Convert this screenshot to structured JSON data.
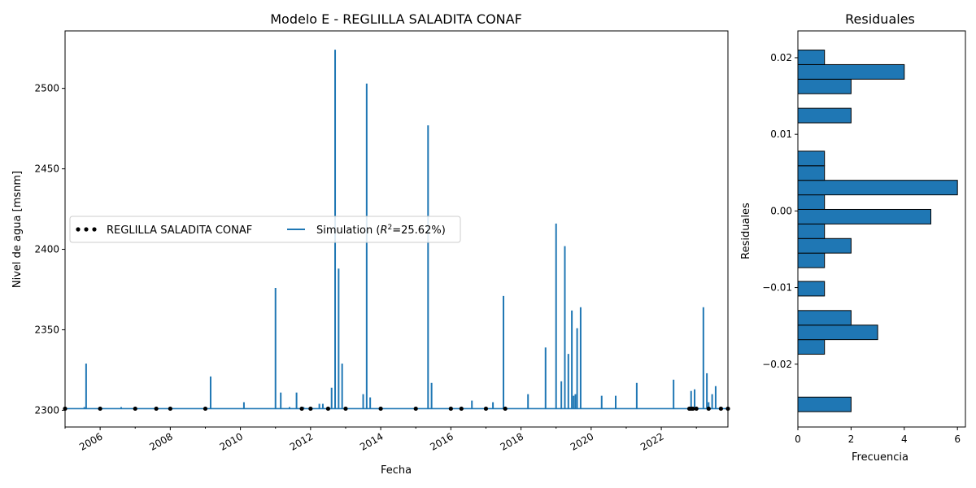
{
  "chart_data": [
    {
      "type": "line",
      "title": "Modelo E - REGLILLA SALADITA CONAF",
      "xlabel": "Fecha",
      "ylabel": "Nivel de agua [msnm]",
      "xlim": [
        2005.0,
        2023.9
      ],
      "ylim": [
        2289.6,
        2535.7
      ],
      "xticks": [
        "2006",
        "2008",
        "2010",
        "2012",
        "2014",
        "2016",
        "2018",
        "2020",
        "2022"
      ],
      "yticks": [
        2300,
        2350,
        2400,
        2450,
        2500
      ],
      "legend": {
        "placement": "center-left",
        "entries": [
          "REGLILLA SALADITA CONAF",
          "Simulation ($R^2$=25.62%)"
        ]
      },
      "series": [
        {
          "name": "REGLILLA SALADITA CONAF",
          "kind": "scatter",
          "color": "#000000",
          "x": [
            2005.0,
            2006.0,
            2007.0,
            2007.6,
            2008.0,
            2009.0,
            2011.75,
            2012.0,
            2012.5,
            2013.0,
            2014.0,
            2015.0,
            2016.0,
            2016.3,
            2017.0,
            2017.55,
            2022.8,
            2022.85,
            2022.9,
            2023.0,
            2023.35,
            2023.7,
            2023.9
          ],
          "y": [
            2301,
            2301,
            2301,
            2301,
            2301,
            2301,
            2301,
            2301,
            2301,
            2301,
            2301,
            2301,
            2301,
            2301,
            2301,
            2301,
            2301,
            2301,
            2301,
            2301,
            2301,
            2301,
            2301
          ]
        },
        {
          "name": "Simulation ($R^2$=25.62%)",
          "kind": "spikes",
          "baseline": 2301,
          "color": "#1f77b4",
          "x": [
            2005.55,
            2005.6,
            2006.6,
            2009.15,
            2010.1,
            2011.0,
            2011.15,
            2011.4,
            2011.6,
            2011.8,
            2012.25,
            2012.35,
            2012.6,
            2012.7,
            2012.8,
            2012.9,
            2013.5,
            2013.6,
            2013.7,
            2015.35,
            2015.45,
            2016.6,
            2017.2,
            2017.5,
            2018.2,
            2018.7,
            2019.0,
            2019.15,
            2019.25,
            2019.35,
            2019.45,
            2019.5,
            2019.55,
            2019.6,
            2019.7,
            2020.3,
            2020.7,
            2021.3,
            2022.35,
            2022.85,
            2022.95,
            2023.2,
            2023.3,
            2023.35,
            2023.45,
            2023.55
          ],
          "y": [
            2302,
            2329,
            2302,
            2321,
            2305,
            2376,
            2311,
            2302,
            2311,
            2302,
            2304,
            2304,
            2314,
            2524,
            2388,
            2329,
            2310,
            2503,
            2308,
            2477,
            2317,
            2306,
            2305,
            2371,
            2310,
            2339,
            2416,
            2318,
            2402,
            2335,
            2362,
            2309,
            2310,
            2351,
            2364,
            2309,
            2309,
            2317,
            2319,
            2312,
            2313,
            2364,
            2323,
            2305,
            2310,
            2315
          ]
        }
      ]
    },
    {
      "type": "bar",
      "orientation": "horizontal",
      "title": "Residuales",
      "xlabel": "Frecuencia",
      "ylabel": "Residuales",
      "xlim": [
        0,
        6.3
      ],
      "ylim": [
        -0.0282,
        0.0235
      ],
      "xticks": [
        0,
        2,
        4,
        6
      ],
      "yticks": [
        "−0.02",
        "−0.01",
        "0.00",
        "0.01",
        "0.02"
      ],
      "ytick_values": [
        -0.02,
        -0.01,
        0.0,
        0.01,
        0.02
      ],
      "bar_color": "#1f77b4",
      "edge_color": "#000000",
      "bins": [
        {
          "from": -0.0262,
          "to": -0.0243,
          "count": 2
        },
        {
          "from": -0.0187,
          "to": -0.0168,
          "count": 1
        },
        {
          "from": -0.0168,
          "to": -0.0149,
          "count": 3
        },
        {
          "from": -0.0149,
          "to": -0.013,
          "count": 2
        },
        {
          "from": -0.0111,
          "to": -0.0092,
          "count": 1
        },
        {
          "from": -0.0074,
          "to": -0.0055,
          "count": 1
        },
        {
          "from": -0.0055,
          "to": -0.0036,
          "count": 2
        },
        {
          "from": -0.0036,
          "to": -0.0017,
          "count": 1
        },
        {
          "from": -0.0017,
          "to": 0.0002,
          "count": 5
        },
        {
          "from": 0.0002,
          "to": 0.0021,
          "count": 1
        },
        {
          "from": 0.0021,
          "to": 0.004,
          "count": 6
        },
        {
          "from": 0.004,
          "to": 0.0059,
          "count": 1
        },
        {
          "from": 0.0059,
          "to": 0.0078,
          "count": 1
        },
        {
          "from": 0.0115,
          "to": 0.0134,
          "count": 2
        },
        {
          "from": 0.0153,
          "to": 0.0172,
          "count": 2
        },
        {
          "from": 0.0172,
          "to": 0.0191,
          "count": 4
        },
        {
          "from": 0.0191,
          "to": 0.021,
          "count": 1
        }
      ]
    }
  ]
}
